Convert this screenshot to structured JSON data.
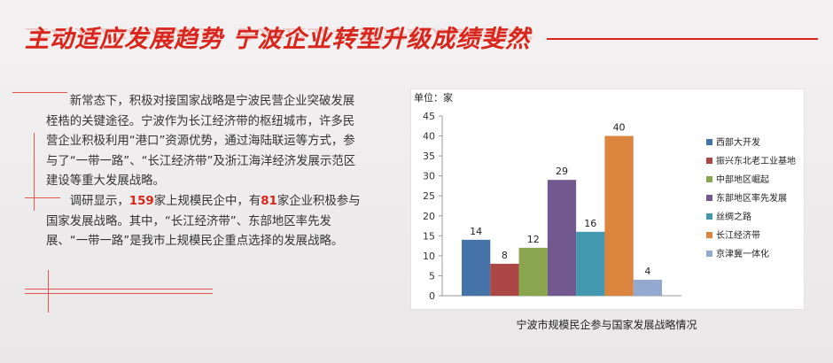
{
  "header": {
    "title": "主动适应发展趋势 宁波企业转型升级成绩斐然"
  },
  "article": {
    "para1": "新常态下，积极对接国家战略是宁波民营企业突破发展桎梏的关键途径。宁波作为长江经济带的枢纽城市，许多民营企业积极利用“港口”资源优势，通过海陆联运等方式，参与了“一带一路”、“长江经济带”及浙江海洋经济发展示范区建设等重大发展战略。",
    "para2_a": "调研显示，",
    "para2_num1": "159",
    "para2_b": "家上规模民企中，有",
    "para2_num2": "81",
    "para2_c": "家企业积极参与国家发展战略。其中，“长江经济带”、东部地区率先发展、“一带一路”是我市上规模民企重点选择的发展战略。"
  },
  "chart_data": {
    "type": "bar",
    "unit_label": "单位：家",
    "caption": "宁波市规模民企参与国家发展战略情况",
    "ylim": [
      0,
      45
    ],
    "yticks": [
      0,
      5,
      10,
      15,
      20,
      25,
      30,
      35,
      40,
      45
    ],
    "grid": false,
    "legend_position": "right",
    "series": [
      {
        "name": "西部大开发",
        "value": 14,
        "color": "#4573a7"
      },
      {
        "name": "振兴东北老工业基地",
        "value": 8,
        "color": "#aa4643"
      },
      {
        "name": "中部地区崛起",
        "value": 12,
        "color": "#89a54e"
      },
      {
        "name": "东部地区率先发展",
        "value": 29,
        "color": "#71588f"
      },
      {
        "name": "丝绸之路",
        "value": 16,
        "color": "#4198af"
      },
      {
        "name": "长江经济带",
        "value": 40,
        "color": "#db843d"
      },
      {
        "name": "京津冀一体化",
        "value": 4,
        "color": "#93a9cf"
      }
    ]
  },
  "colors": {
    "accent": "#d9261c",
    "highlight_number": "#d9261c"
  }
}
